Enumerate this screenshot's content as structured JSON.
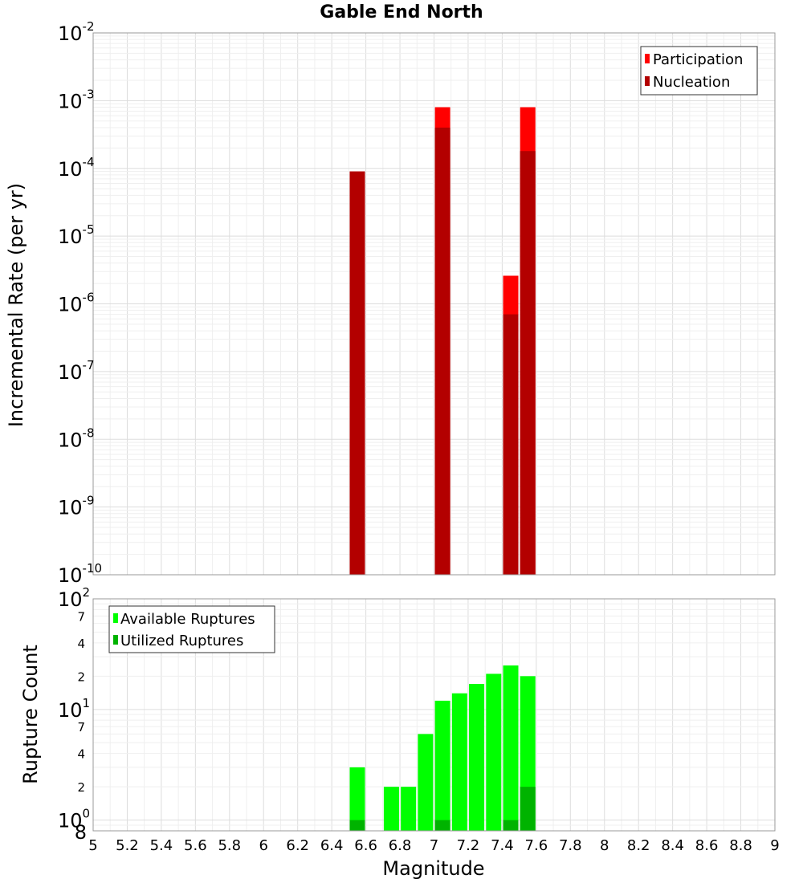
{
  "chart_data": [
    {
      "type": "bar",
      "title": "Gable End North",
      "xlabel": "",
      "ylabel": "Incremental Rate (per yr)",
      "yscale": "log",
      "xlim": [
        5,
        9
      ],
      "ylim": [
        1e-10,
        0.01
      ],
      "y_ticks": [
        {
          "base": "10",
          "exp": "-2",
          "value": 0.01
        },
        {
          "base": "10",
          "exp": "-3",
          "value": 0.001
        },
        {
          "base": "10",
          "exp": "-4",
          "value": 0.0001
        },
        {
          "base": "10",
          "exp": "-5",
          "value": 1e-05
        },
        {
          "base": "10",
          "exp": "-6",
          "value": 1e-06
        },
        {
          "base": "10",
          "exp": "-7",
          "value": 1e-07
        },
        {
          "base": "10",
          "exp": "-8",
          "value": 1e-08
        },
        {
          "base": "10",
          "exp": "-9",
          "value": 1e-09
        },
        {
          "base": "10",
          "exp": "-10",
          "value": 1e-10
        }
      ],
      "legend": {
        "position": "top-right",
        "entries": [
          {
            "name": "Participation",
            "color": "#ff0000"
          },
          {
            "name": "Nucleation",
            "color": "#b30000"
          }
        ]
      },
      "series": [
        {
          "name": "Participation",
          "color": "#ff0000",
          "x": [
            6.55,
            7.05,
            7.45,
            7.55
          ],
          "values": [
            9e-05,
            0.0008,
            2.6e-06,
            0.0008
          ]
        },
        {
          "name": "Nucleation",
          "color": "#b30000",
          "x": [
            6.55,
            7.05,
            7.45,
            7.55
          ],
          "values": [
            9e-05,
            0.0004,
            7e-07,
            0.00018
          ]
        }
      ]
    },
    {
      "type": "bar",
      "title": "",
      "xlabel": "Magnitude",
      "ylabel": "Rupture Count",
      "yscale": "log",
      "xlim": [
        5,
        9
      ],
      "ylim": [
        0.8,
        100
      ],
      "x_tick_labels": [
        "5",
        "5.2",
        "5.4",
        "5.6",
        "5.8",
        "6",
        "6.2",
        "6.4",
        "6.6",
        "6.8",
        "7",
        "7.2",
        "7.4",
        "7.6",
        "7.8",
        "8",
        "8.2",
        "8.4",
        "8.6",
        "8.8",
        "9"
      ],
      "y_major_ticks": [
        {
          "base": "10",
          "exp": "2",
          "value": 100
        },
        {
          "base": "10",
          "exp": "1",
          "value": 10
        },
        {
          "base": "10",
          "exp": "0",
          "value": 1
        }
      ],
      "y_minor_ticks": [
        {
          "label": "7",
          "value": 70
        },
        {
          "label": "4",
          "value": 40
        },
        {
          "label": "2",
          "value": 20
        },
        {
          "label": "7",
          "value": 7
        },
        {
          "label": "4",
          "value": 4
        },
        {
          "label": "2",
          "value": 2
        },
        {
          "label": "8",
          "value": 0.8
        }
      ],
      "legend": {
        "position": "top-left",
        "entries": [
          {
            "name": "Available Ruptures",
            "color": "#00ff00"
          },
          {
            "name": "Utilized Ruptures",
            "color": "#00b300"
          }
        ]
      },
      "series": [
        {
          "name": "Available Ruptures",
          "color": "#00ff00",
          "x": [
            6.55,
            6.75,
            6.85,
            6.95,
            7.05,
            7.15,
            7.25,
            7.35,
            7.45,
            7.55
          ],
          "values": [
            3,
            2,
            2,
            6,
            12,
            14,
            17,
            21,
            25,
            20
          ]
        },
        {
          "name": "Utilized Ruptures",
          "color": "#00b300",
          "x": [
            6.55,
            7.05,
            7.45,
            7.55
          ],
          "values": [
            1,
            1,
            1,
            2
          ]
        }
      ]
    }
  ]
}
